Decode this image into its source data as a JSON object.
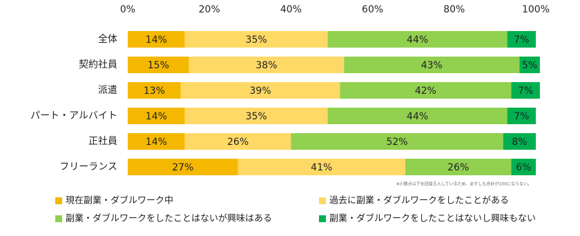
{
  "chart_data": {
    "type": "stacked-bar-horizontal",
    "categories": [
      "全体",
      "契約社員",
      "派遣",
      "パート・アルバイト",
      "正社員",
      "フリーランス"
    ],
    "xlim": [
      0,
      100
    ],
    "xticks": [
      {
        "value": 0,
        "label": "0%"
      },
      {
        "value": 20,
        "label": "20%"
      },
      {
        "value": 40,
        "label": "40%"
      },
      {
        "value": 60,
        "label": "60%"
      },
      {
        "value": 80,
        "label": "80%"
      },
      {
        "value": 100,
        "label": "100%"
      }
    ],
    "series": [
      {
        "name": "現在副業・ダブルワーク中",
        "color": "#f5b800",
        "values": [
          14,
          15,
          13,
          14,
          14,
          27
        ],
        "value_labels": [
          "14%",
          "15%",
          "13%",
          "14%",
          "14%",
          "27%"
        ]
      },
      {
        "name": "過去に副業・ダブルワークをしたことがある",
        "color": "#ffd966",
        "values": [
          35,
          38,
          39,
          35,
          26,
          41
        ],
        "value_labels": [
          "35%",
          "38%",
          "39%",
          "35%",
          "26%",
          "41%"
        ]
      },
      {
        "name": "副業・ダブルワークをしたことはないが興味はある",
        "color": "#92d050",
        "values": [
          44,
          43,
          42,
          44,
          52,
          26
        ],
        "value_labels": [
          "44%",
          "43%",
          "42%",
          "44%",
          "52%",
          "26%"
        ]
      },
      {
        "name": "副業・ダブルワークをしたことはないし興味もない",
        "color": "#00b050",
        "values": [
          7,
          5,
          7,
          7,
          8,
          6
        ],
        "value_labels": [
          "7%",
          "5%",
          "7%",
          "7%",
          "8%",
          "6%"
        ]
      }
    ],
    "note": "※小数点以下を四捨五入しているため、必ずしも合計が100にならない。"
  }
}
